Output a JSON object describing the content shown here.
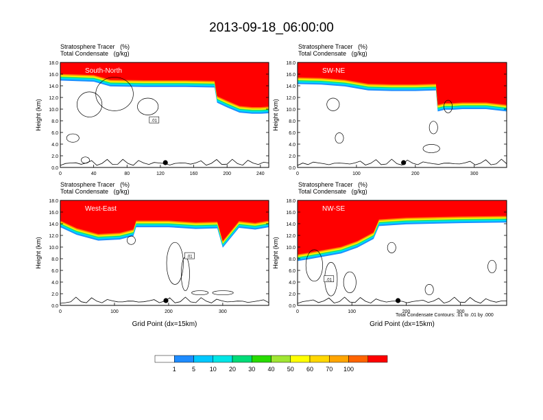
{
  "main_title": "2013-09-18_06:00:00",
  "panel_header": {
    "line1_label": "Stratosphere Tracer",
    "line1_unit": "(%)",
    "line2_label": "Total Condensate",
    "line2_unit": "(g/kg)"
  },
  "y_axis_label": "Height (km)",
  "x_axis_label": "Grid Point (dx=15km)",
  "footnote": "Total Condensate Contours: .01 to .01 by .000",
  "colorbar": {
    "labels": [
      "1",
      "5",
      "10",
      "20",
      "30",
      "40",
      "50",
      "60",
      "70",
      "100"
    ],
    "colors": [
      "#ffffff",
      "#1e8cff",
      "#00c8ff",
      "#00e6e6",
      "#00dc78",
      "#28dc00",
      "#a0e632",
      "#ffff00",
      "#ffd700",
      "#ffa500",
      "#ff6400",
      "#ff0000"
    ]
  },
  "chart_data": [
    {
      "type": "heatmap",
      "title": "South-North",
      "xlabel": "",
      "ylabel": "Height (km)",
      "xlim": [
        0,
        250
      ],
      "ylim": [
        0,
        18
      ],
      "xticks": [
        "0",
        "40",
        "80",
        "120",
        "160",
        "200",
        "240"
      ],
      "yticks": [
        "0.0",
        "2.0",
        "4.0",
        "6.0",
        "8.0",
        "10.0",
        "12.0",
        "14.0",
        "16.0",
        "18.0"
      ],
      "contour_label": ".01",
      "marker_x": 126,
      "tropopause": {
        "x": [
          0,
          20,
          40,
          60,
          100,
          150,
          185,
          188,
          200,
          215,
          230,
          240,
          250
        ],
        "y": [
          15.8,
          15.7,
          15.6,
          14.8,
          14.7,
          14.7,
          14.6,
          12.0,
          11.2,
          10.3,
          10.1,
          10.1,
          10.2
        ]
      }
    },
    {
      "type": "heatmap",
      "title": "SW-NE",
      "xlabel": "",
      "ylabel": "Height (km)",
      "xlim": [
        0,
        355
      ],
      "ylim": [
        0,
        18
      ],
      "xticks": [
        "0",
        "100",
        "200",
        "300"
      ],
      "yticks": [
        "0.0",
        "2.0",
        "4.0",
        "6.0",
        "8.0",
        "10.0",
        "12.0",
        "14.0",
        "16.0",
        "18.0"
      ],
      "contour_label": "",
      "marker_x": 180,
      "tropopause": {
        "x": [
          0,
          40,
          80,
          120,
          160,
          200,
          235,
          238,
          250,
          265,
          280,
          300,
          320,
          355
        ],
        "y": [
          15.2,
          15.1,
          14.8,
          14.1,
          14.0,
          14.0,
          14.1,
          10.5,
          10.8,
          10.8,
          10.9,
          10.9,
          10.9,
          10.5
        ]
      }
    },
    {
      "type": "heatmap",
      "title": "West-East",
      "xlabel": "Grid Point (dx=15km)",
      "ylabel": "Height (km)",
      "xlim": [
        0,
        385
      ],
      "ylim": [
        0,
        18
      ],
      "xticks": [
        "0",
        "100",
        "200",
        "300"
      ],
      "yticks": [
        "0.0",
        "2.0",
        "4.0",
        "6.0",
        "8.0",
        "10.0",
        "12.0",
        "14.0",
        "16.0",
        "18.0"
      ],
      "contour_label": ".01",
      "marker_x": 195,
      "tropopause": {
        "x": [
          0,
          30,
          70,
          110,
          135,
          140,
          200,
          250,
          290,
          300,
          330,
          360,
          385
        ],
        "y": [
          14.3,
          13.0,
          12.0,
          12.2,
          12.8,
          14.3,
          14.3,
          14.0,
          14.1,
          10.8,
          14.2,
          13.9,
          14.3
        ]
      }
    },
    {
      "type": "heatmap",
      "title": "NW-SE",
      "xlabel": "Grid Point (dx=15km)",
      "ylabel": "Height (km)",
      "xlim": [
        0,
        385
      ],
      "ylim": [
        0,
        18
      ],
      "xticks": [
        "0",
        "100",
        "200",
        "300"
      ],
      "yticks": [
        "0.0",
        "2.0",
        "4.0",
        "6.0",
        "8.0",
        "10.0",
        "12.0",
        "14.0",
        "16.0",
        "18.0"
      ],
      "contour_label": ".01",
      "marker_x": 185,
      "tropopause": {
        "x": [
          0,
          20,
          50,
          80,
          110,
          140,
          150,
          200,
          300,
          385
        ],
        "y": [
          8.5,
          8.8,
          9.3,
          9.8,
          10.8,
          12.3,
          14.5,
          14.8,
          15.0,
          15.1
        ]
      }
    }
  ]
}
